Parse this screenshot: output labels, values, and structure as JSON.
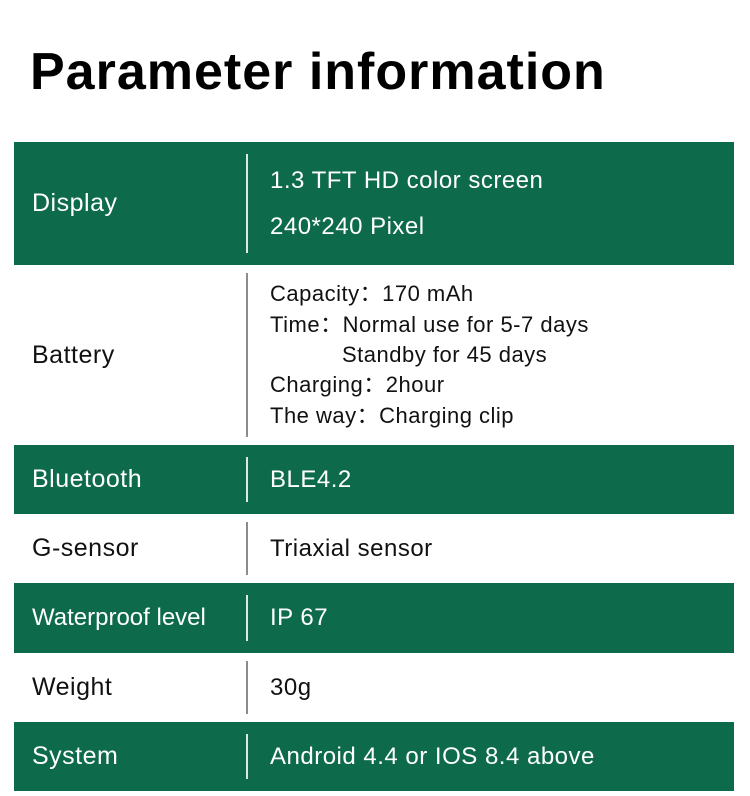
{
  "title": "Parameter information",
  "colors": {
    "green_bg": "#0d6b4c",
    "white_bg": "#ffffff",
    "title_text": "#000000",
    "green_text": "#ffffff",
    "white_text": "#111111"
  },
  "typography": {
    "title_fontsize": 52,
    "label_fontsize": 25,
    "value_fontsize": 24,
    "battery_value_fontsize": 22
  },
  "rows": {
    "display": {
      "label": "Display",
      "lines": [
        "1.3 TFT HD color screen",
        "240*240 Pixel"
      ]
    },
    "battery": {
      "label": "Battery",
      "lines": [
        "Capacity：170 mAh",
        "Time：Normal use for 5-7 days",
        "Standby for 45 days",
        "Charging：2hour",
        "The way：Charging clip"
      ]
    },
    "bluetooth": {
      "label": "Bluetooth",
      "value": "BLE4.2"
    },
    "gsensor": {
      "label": "G-sensor",
      "value": "Triaxial sensor"
    },
    "waterproof": {
      "label": "Waterproof level",
      "value": "IP 67"
    },
    "weight": {
      "label": "Weight",
      "value": "30g"
    },
    "system": {
      "label": "System",
      "value": "Android 4.4 or  IOS 8.4 above"
    }
  }
}
